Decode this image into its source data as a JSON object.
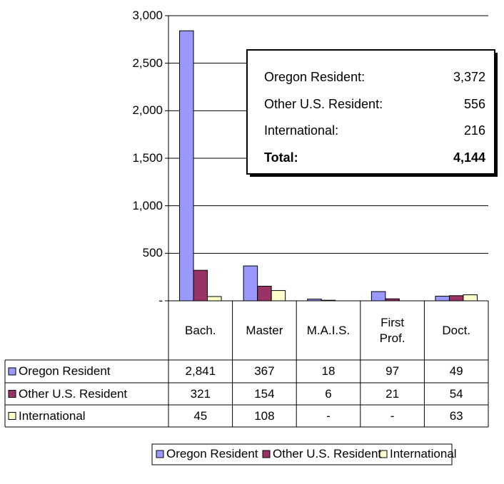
{
  "chart_data": {
    "type": "bar",
    "categories": [
      "Bach.",
      "Master",
      "M.A.I.S.",
      "First Prof.",
      "Doct."
    ],
    "series": [
      {
        "name": "Oregon Resident",
        "color": "#9999ff",
        "values": [
          2841,
          367,
          18,
          97,
          49
        ],
        "value_labels": [
          "2,841",
          "367",
          "18",
          "97",
          "49"
        ]
      },
      {
        "name": "Other U.S. Resident",
        "color": "#993366",
        "values": [
          321,
          154,
          6,
          21,
          54
        ],
        "value_labels": [
          "321",
          "154",
          "6",
          "21",
          "54"
        ]
      },
      {
        "name": "International",
        "color": "#ffffcc",
        "values": [
          45,
          108,
          null,
          null,
          63
        ],
        "value_labels": [
          "45",
          "108",
          "-",
          "-",
          "63"
        ]
      }
    ],
    "ylim": [
      0,
      3000
    ],
    "yticks": [
      {
        "value": 0,
        "label": "-"
      },
      500,
      {
        "value": 1000,
        "label": "1,000"
      },
      {
        "value": 1500,
        "label": "1,500"
      },
      {
        "value": 2000,
        "label": "2,000"
      },
      {
        "value": 2500,
        "label": "2,500"
      },
      {
        "value": 3000,
        "label": "3,000"
      }
    ],
    "grid": true,
    "legend": "bottom",
    "annotation": {
      "rows": [
        {
          "label": "Oregon Resident:",
          "value": "3,372"
        },
        {
          "label": "Other U.S. Resident:",
          "value": "556"
        },
        {
          "label": "International:",
          "value": "216"
        },
        {
          "label": "Total:",
          "value": "4,144"
        }
      ]
    }
  }
}
